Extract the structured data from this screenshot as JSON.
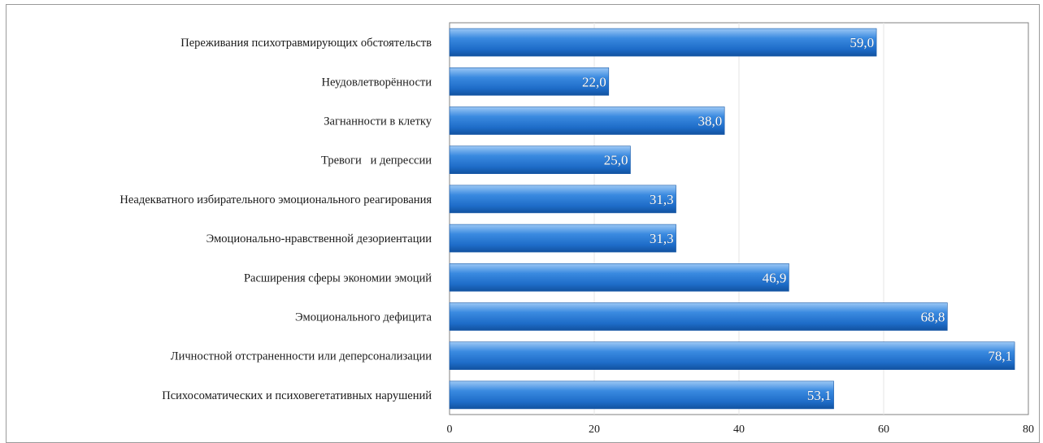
{
  "chart_data": {
    "type": "bar",
    "orientation": "horizontal",
    "categories": [
      "Переживания психотравмирующих обстоятельств",
      "Неудовлетворённости",
      "Загнанности в клетку",
      "Тревоги   и депрессии",
      "Неадекватного избирательного эмоционального реагирования",
      "Эмоционально-нравственной дезориентации",
      "Расширения сферы экономии эмоций",
      "Эмоционального дефицита",
      "Личностной отстраненности или деперсонализации",
      "Психосоматических и психовегетативных нарушений"
    ],
    "values": [
      59.0,
      22.0,
      38.0,
      25.0,
      31.3,
      31.3,
      46.9,
      68.8,
      78.1,
      53.1
    ],
    "value_labels": [
      "59,0",
      "22,0",
      "38,0",
      "25,0",
      "31,3",
      "31,3",
      "46,9",
      "68,8",
      "78,1",
      "53,1"
    ],
    "xlim": [
      0,
      80
    ],
    "xticks": [
      0,
      20,
      40,
      60,
      80
    ],
    "title": "",
    "xlabel": "",
    "ylabel": "",
    "grid": "vertical",
    "legend": "none",
    "colors": {
      "bar_light": "#7fb6f0",
      "bar_mid": "#2f7fd6",
      "bar_dark": "#1557a8"
    }
  }
}
